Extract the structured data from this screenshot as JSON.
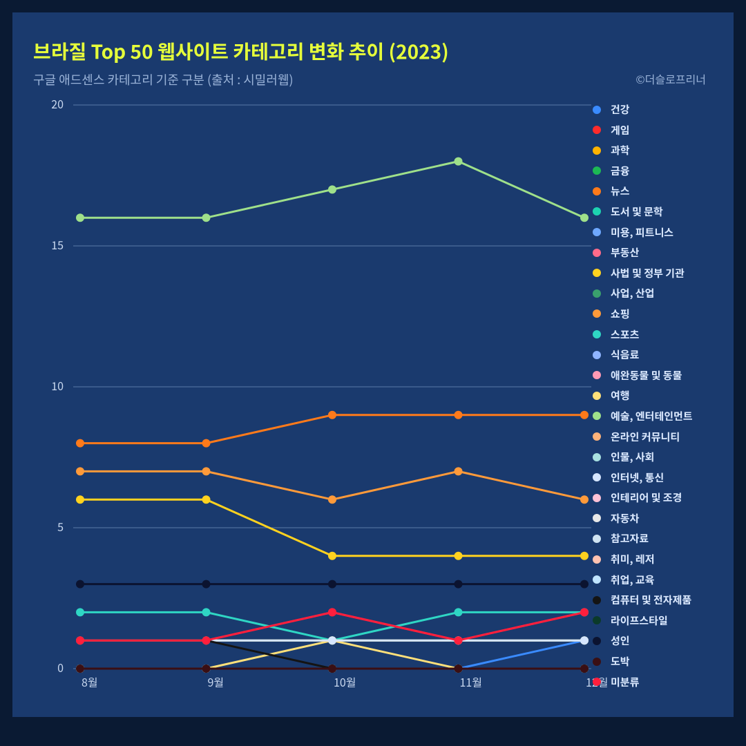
{
  "title": "브라질 Top 50 웹사이트 카테고리 변화 추이 (2023)",
  "subtitle": "구글 애드센스 카테고리 기준 구분 (출처 : 시밀러웹)",
  "credit": "©더슬로프리너",
  "background_outer": "#0a1a33",
  "background_inner": "#1a3a6e",
  "grid_color": "#5b7aa8",
  "axis_tick_color": "#c9d8ef",
  "chart": {
    "type": "line",
    "xlabels": [
      "8월",
      "9월",
      "10월",
      "11월",
      "12월"
    ],
    "ylim": [
      0,
      20
    ],
    "yticks": [
      0,
      5,
      10,
      15,
      20
    ],
    "marker_radius": 6,
    "line_width": 3,
    "series": [
      {
        "key": "건강",
        "color": "#3a8bff",
        "values": [
          0,
          0,
          0,
          0,
          1
        ]
      },
      {
        "key": "게임",
        "color": "#ff2b2b",
        "values": [
          1,
          1,
          2,
          1,
          2
        ]
      },
      {
        "key": "과학",
        "color": "#ffb300",
        "values": [
          0,
          0,
          0,
          0,
          0
        ]
      },
      {
        "key": "금융",
        "color": "#1db954",
        "values": [
          1,
          1,
          1,
          1,
          1
        ]
      },
      {
        "key": "뉴스",
        "color": "#ff7a1a",
        "values": [
          8,
          8,
          9,
          9,
          9
        ]
      },
      {
        "key": "도서 및 문학",
        "color": "#1dd3b0",
        "values": [
          0,
          0,
          0,
          0,
          0
        ]
      },
      {
        "key": "미용, 피트니스",
        "color": "#6ea8ff",
        "values": [
          0,
          0,
          0,
          0,
          0
        ]
      },
      {
        "key": "부동산",
        "color": "#ff6b8a",
        "values": [
          0,
          0,
          0,
          0,
          0
        ]
      },
      {
        "key": "사법 및 정부 기관",
        "color": "#ffd21f",
        "values": [
          6,
          6,
          4,
          4,
          4
        ]
      },
      {
        "key": "사업, 산업",
        "color": "#3aa06d",
        "values": [
          0,
          0,
          0,
          0,
          0
        ]
      },
      {
        "key": "쇼핑",
        "color": "#ff9a3a",
        "values": [
          7,
          7,
          6,
          7,
          6
        ]
      },
      {
        "key": "스포츠",
        "color": "#2fd6c4",
        "values": [
          2,
          2,
          1,
          2,
          2
        ]
      },
      {
        "key": "식음료",
        "color": "#8fb4ff",
        "values": [
          0,
          0,
          0,
          0,
          0
        ]
      },
      {
        "key": "애완동물 및 동물",
        "color": "#ff9ab5",
        "values": [
          0,
          0,
          0,
          0,
          0
        ]
      },
      {
        "key": "여행",
        "color": "#ffe07a",
        "values": [
          0,
          0,
          1,
          0,
          0
        ]
      },
      {
        "key": "예술, 엔터테인먼트",
        "color": "#9fe08a",
        "values": [
          16,
          16,
          17,
          18,
          16
        ]
      },
      {
        "key": "온라인 커뮤니티",
        "color": "#ffb37a",
        "values": [
          1,
          1,
          1,
          1,
          1
        ]
      },
      {
        "key": "인물, 사회",
        "color": "#a8e0e0",
        "values": [
          0,
          0,
          0,
          0,
          0
        ]
      },
      {
        "key": "인터넷, 통신",
        "color": "#d6e6ff",
        "values": [
          1,
          1,
          1,
          1,
          1
        ]
      },
      {
        "key": "인테리어 및 조경",
        "color": "#ffc2d6",
        "values": [
          0,
          0,
          0,
          0,
          0
        ]
      },
      {
        "key": "자동차",
        "color": "#e8e8e8",
        "values": [
          0,
          0,
          0,
          0,
          0
        ]
      },
      {
        "key": "참고자료",
        "color": "#cfe3f2",
        "values": [
          0,
          0,
          0,
          0,
          0
        ]
      },
      {
        "key": "취미, 레저",
        "color": "#ffc2b0",
        "values": [
          0,
          0,
          0,
          0,
          0
        ]
      },
      {
        "key": "취업, 교육",
        "color": "#bfe4ff",
        "values": [
          0,
          0,
          0,
          0,
          0
        ]
      },
      {
        "key": "컴퓨터 및 전자제품",
        "color": "#141414",
        "values": [
          1,
          1,
          0,
          0,
          0
        ]
      },
      {
        "key": "라이프스타일",
        "color": "#0b3a2a",
        "values": [
          0,
          0,
          0,
          0,
          0
        ]
      },
      {
        "key": "성인",
        "color": "#0b1330",
        "values": [
          3,
          3,
          3,
          3,
          3
        ]
      },
      {
        "key": "도박",
        "color": "#3a0f14",
        "values": [
          0,
          0,
          0,
          0,
          0
        ]
      },
      {
        "key": "미분류",
        "color": "#ff1f3d",
        "values": [
          1,
          1,
          2,
          1,
          2
        ]
      }
    ]
  }
}
